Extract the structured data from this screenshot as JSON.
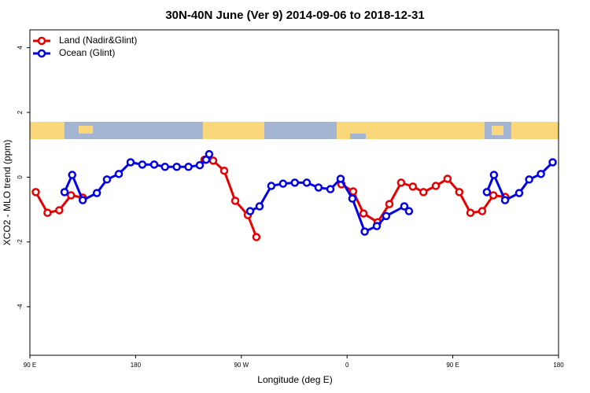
{
  "chart_data": {
    "type": "line",
    "title": "30N-40N June (Ver 9)   2014-09-06 to 2018-12-31",
    "x_label": "Longitude (deg E)",
    "y_label": "XCO2 - MLO trend (ppm)",
    "xlim": [
      90,
      540
    ],
    "ylim": [
      -5.5,
      4.55
    ],
    "xticks": [
      {
        "value": 90,
        "label": "90 E"
      },
      {
        "value": 180,
        "label": "180"
      },
      {
        "value": 270,
        "label": "90 W"
      },
      {
        "value": 360,
        "label": "0"
      },
      {
        "value": 450,
        "label": "90 E"
      },
      {
        "value": 540,
        "label": "180"
      }
    ],
    "yticks": [
      -4,
      -2,
      0,
      2,
      4
    ],
    "legend": "top-left",
    "series": [
      {
        "name": "Land (Nadir&Glint)",
        "color": "#e60000",
        "x": [
          95,
          105,
          115,
          125,
          135,
          null,
          238.6,
          246,
          255.4,
          264.8,
          275.5,
          282.8,
          null,
          355.2,
          365.2,
          374,
          386,
          396,
          406,
          416,
          425,
          435.5,
          445.5,
          455.5,
          465,
          475,
          484.5,
          494.6
        ],
        "values": [
          -0.46,
          -1.1,
          -1.02,
          -0.56,
          -0.63,
          null,
          0.54,
          0.51,
          0.2,
          -0.73,
          -1.17,
          -1.85,
          null,
          -0.22,
          -0.44,
          -1.12,
          -1.39,
          -0.83,
          -0.17,
          -0.29,
          -0.46,
          -0.27,
          -0.05,
          -0.46,
          -1.1,
          -1.05,
          -0.56,
          -0.61
        ]
      },
      {
        "name": "Ocean (Glint)",
        "color": "#0000e6",
        "x": [
          119.5,
          126,
          135,
          147,
          155.6,
          165.7,
          175.7,
          185.7,
          195.8,
          205,
          215,
          225,
          234.6,
          240,
          242.6,
          null,
          277.5,
          285.5,
          295.5,
          305.5,
          315.5,
          325.7,
          335.7,
          345.8,
          354.5,
          364.5,
          375,
          385.3,
          393.3,
          408.7,
          412.7,
          null,
          479,
          485,
          494.5,
          506.5,
          515,
          525,
          535
        ],
        "values": [
          -0.46,
          0.07,
          -0.71,
          -0.49,
          -0.07,
          0.1,
          0.46,
          0.39,
          0.39,
          0.32,
          0.32,
          0.32,
          0.37,
          0.54,
          0.71,
          null,
          -1.05,
          -0.9,
          -0.27,
          -0.2,
          -0.17,
          -0.17,
          -0.32,
          -0.37,
          -0.05,
          -0.66,
          -1.68,
          -1.51,
          -1.2,
          -0.9,
          -1.05,
          null,
          -0.46,
          0.07,
          -0.71,
          -0.49,
          -0.07,
          0.1,
          0.46
        ]
      }
    ]
  }
}
